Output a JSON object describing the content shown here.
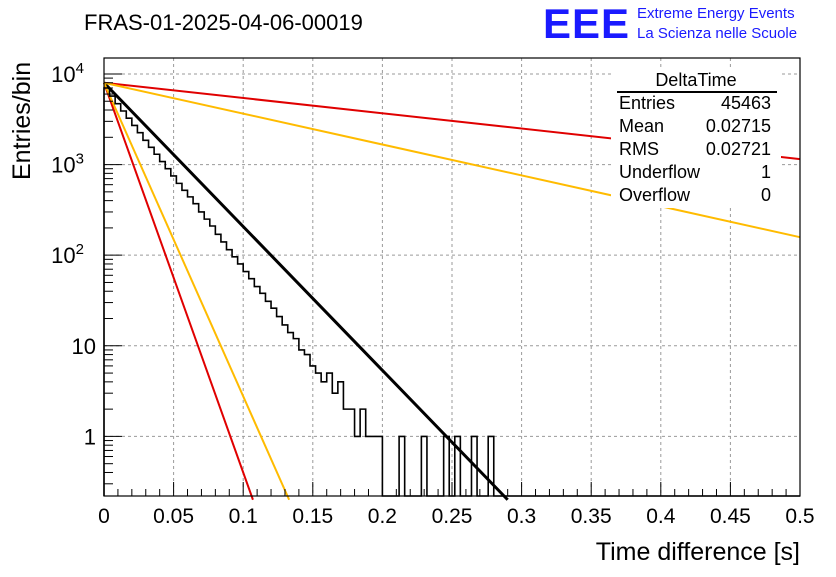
{
  "title": "FRAS-01-2025-04-06-00019",
  "logo": {
    "mark": "EEE",
    "line1": "Extreme Energy Events",
    "line2": "La Scienza nelle Scuole"
  },
  "colors": {
    "histogram": "#000000",
    "fit": "#000000",
    "curve_red": "#e00000",
    "curve_orange": "#ffbb00",
    "logo": "#1a1aff",
    "grid": "#9a9a9a"
  },
  "stats": {
    "title": "DeltaTime",
    "rows": [
      {
        "key": "Entries",
        "value": "45463"
      },
      {
        "key": "Mean",
        "value": "0.02715"
      },
      {
        "key": "RMS",
        "value": "0.02721"
      },
      {
        "key": "Underflow",
        "value": "1"
      },
      {
        "key": "Overflow",
        "value": "0"
      }
    ]
  },
  "chart_data": {
    "type": "histogram",
    "xlabel": "Time difference [s]",
    "ylabel": "Entries/bin",
    "xlim": [
      0,
      0.5
    ],
    "ylim": [
      0.22,
      15000
    ],
    "y_scale": "log",
    "grid": true,
    "x_ticks": [
      "0",
      "0.05",
      "0.1",
      "0.15",
      "0.2",
      "0.25",
      "0.3",
      "0.35",
      "0.4",
      "0.45",
      "0.5"
    ],
    "y_ticks": [
      {
        "value": 10000,
        "base": "10",
        "exp": "4"
      },
      {
        "value": 1000,
        "base": "10",
        "exp": "3"
      },
      {
        "value": 100,
        "base": "10",
        "exp": "2"
      },
      {
        "value": 10,
        "base": "10",
        "exp": ""
      },
      {
        "value": 1,
        "base": "1",
        "exp": ""
      }
    ],
    "legend_position": "top-right",
    "bin_width": 0.004,
    "histogram": {
      "name": "DeltaTime",
      "x_start": 0,
      "counts": [
        7000,
        5700,
        4700,
        3900,
        3250,
        2700,
        2250,
        1850,
        1550,
        1300,
        1080,
        900,
        750,
        620,
        520,
        440,
        370,
        300,
        250,
        210,
        170,
        140,
        115,
        96,
        80,
        66,
        55,
        45,
        38,
        31,
        26,
        21,
        17,
        14,
        12,
        9,
        8,
        6,
        5,
        4,
        5,
        3,
        4,
        2,
        2,
        1,
        2,
        1,
        1,
        1,
        0,
        0,
        0,
        1,
        0,
        0,
        0,
        1,
        0,
        0,
        0,
        1,
        0,
        1,
        0,
        0,
        1,
        0,
        0,
        1,
        0,
        0,
        0,
        0,
        0,
        0,
        0,
        0,
        0,
        0,
        0,
        0,
        0,
        0,
        0,
        0,
        0,
        0,
        0,
        0,
        0,
        0,
        0,
        0,
        0,
        0,
        0,
        0,
        0,
        0,
        0,
        0,
        0,
        0,
        0,
        0,
        0,
        0,
        0,
        0,
        0,
        0,
        0,
        0,
        0,
        0,
        0,
        0,
        0,
        0,
        0,
        0,
        0,
        0,
        0
      ]
    },
    "curves": [
      {
        "color": "#000000",
        "x0": 0,
        "y0": 8000,
        "x1": 0.29,
        "y1": 0.2
      },
      {
        "color": "#e00000",
        "x0": 0,
        "y0": 8000,
        "x1": 0.107,
        "y1": 0.2
      },
      {
        "color": "#ffbb00",
        "x0": 0,
        "y0": 8000,
        "x1": 0.133,
        "y1": 0.2
      },
      {
        "color": "#e00000",
        "x0": 0,
        "y0": 8000,
        "x1": 0.5,
        "y1": 1150
      },
      {
        "color": "#ffbb00",
        "x0": 0,
        "y0": 8000,
        "x1": 0.5,
        "y1": 158
      }
    ]
  }
}
